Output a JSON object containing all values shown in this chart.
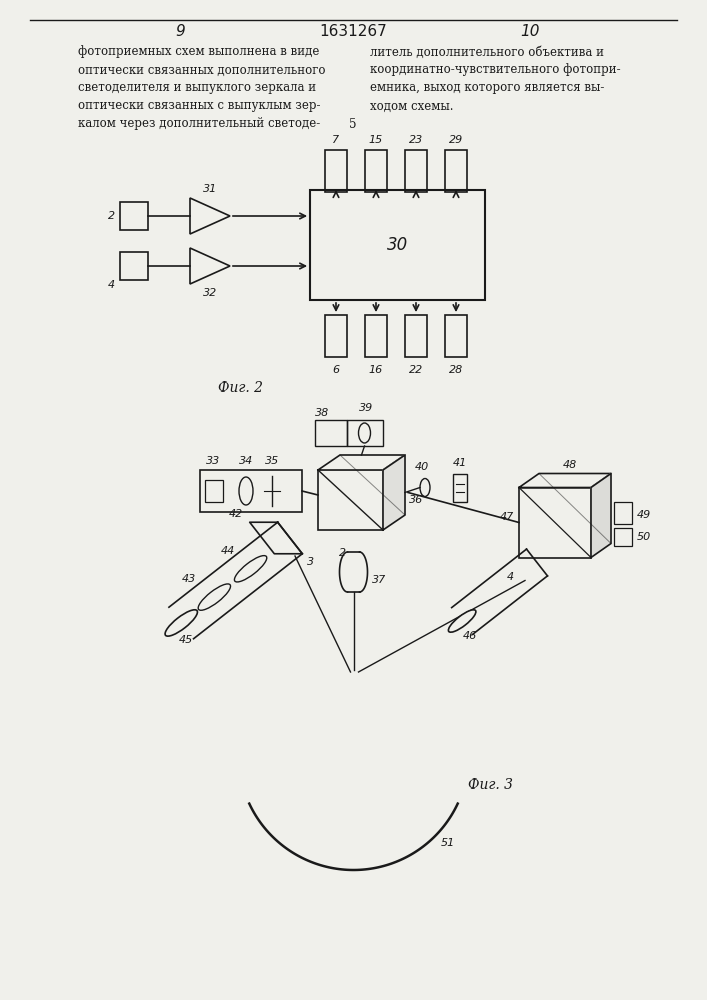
{
  "page_num_left": "9",
  "page_num_center": "1631267",
  "page_num_right": "10",
  "bg_color": "#f0f0eb",
  "line_color": "#1a1a1a",
  "text_color": "#1a1a1a",
  "fig2_label": "Фиг. 2",
  "fig3_label": "Фиг. 3",
  "top_box_labels": [
    "7",
    "15",
    "23",
    "29"
  ],
  "bot_box_labels": [
    "6",
    "16",
    "22",
    "28"
  ],
  "left_lines": [
    "фотоприемных схем выполнена в виде",
    "оптически связанных дополнительного",
    "светоделителя и выпуклого зеркала и",
    "оптически связанных с выпуклым зер-",
    "калом через дополнительный светоде-"
  ],
  "right_lines": [
    "литель дополнительного объектива и",
    "координатно-чувствительного фотопри-",
    "емника, выход которого является вы-",
    "ходом схемы."
  ]
}
